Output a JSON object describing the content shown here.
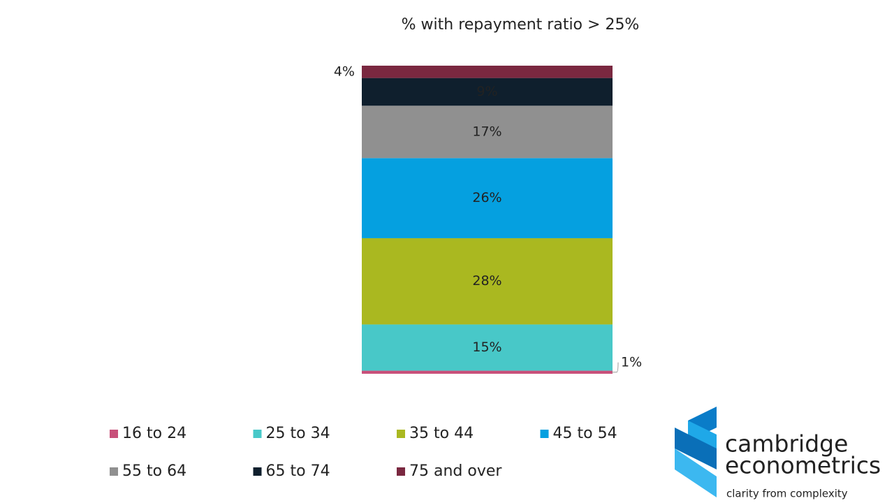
{
  "chart_data": {
    "type": "stacked-bar",
    "title": "% with repayment ratio > 25%",
    "series": [
      {
        "name": "16 to 24",
        "color": "#c8507a",
        "values": [
          1
        ],
        "value_labels": [
          "1%"
        ]
      },
      {
        "name": "25 to 34",
        "color": "#48c8c8",
        "values": [
          15
        ],
        "value_labels": [
          "15%"
        ]
      },
      {
        "name": "35 to 44",
        "color": "#aab820",
        "values": [
          28
        ],
        "value_labels": [
          "28%"
        ]
      },
      {
        "name": "45 to 54",
        "color": "#05a0e0",
        "values": [
          26
        ],
        "value_labels": [
          "26%"
        ]
      },
      {
        "name": "55 to 64",
        "color": "#909090",
        "values": [
          17
        ],
        "value_labels": [
          "17%"
        ]
      },
      {
        "name": "65 to 74",
        "color": "#0f1f2d",
        "values": [
          9
        ],
        "value_labels": [
          "9%"
        ]
      },
      {
        "name": "75 and over",
        "color": "#7a2840",
        "values": [
          4
        ],
        "value_labels": [
          "4%"
        ]
      }
    ]
  },
  "logo": {
    "line1": "cambridge",
    "line2": "econometrics",
    "tagline": "clarity from complexity"
  }
}
